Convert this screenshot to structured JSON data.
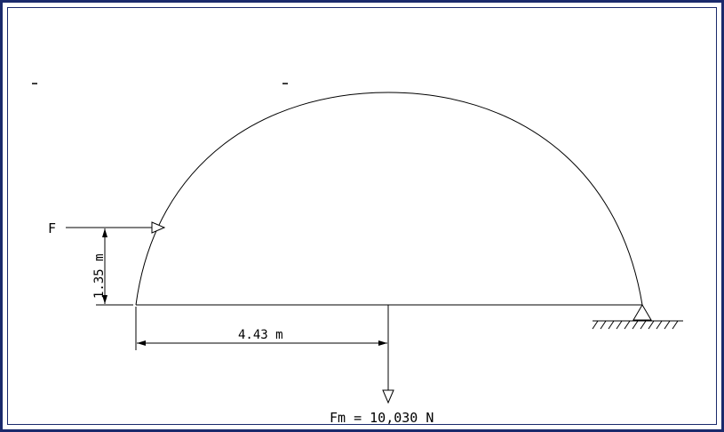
{
  "diagram": {
    "force_label": "F",
    "height_dimension": "1.35 m",
    "horizontal_dimension": "4.43 m",
    "weight_label": "Fm = 10,030 N",
    "stray_marks": [
      "-",
      "-"
    ]
  },
  "colors": {
    "frame": "#1a2a6c",
    "line": "#000000",
    "background": "#ffffff"
  }
}
